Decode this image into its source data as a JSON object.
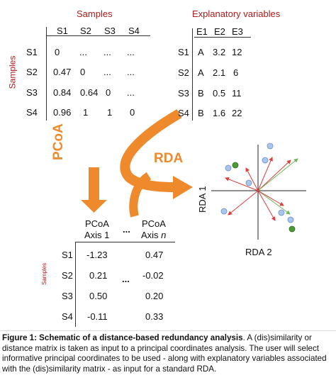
{
  "distance_matrix": {
    "title": "Samples",
    "side_label": "Samples",
    "columns": [
      "S1",
      "S2",
      "S3",
      "S4"
    ],
    "rows": [
      {
        "label": "S1",
        "cells": [
          "0",
          "...",
          "...",
          "..."
        ]
      },
      {
        "label": "S2",
        "cells": [
          "0.47",
          "0",
          "...",
          "..."
        ]
      },
      {
        "label": "S3",
        "cells": [
          "0.84",
          "0.64",
          "0",
          "..."
        ]
      },
      {
        "label": "S4",
        "cells": [
          "0.96",
          "1",
          "1",
          "0"
        ]
      }
    ]
  },
  "explanatory": {
    "title": "Explanatory variables",
    "columns": [
      "E1",
      "E2",
      "E3"
    ],
    "rows": [
      {
        "label": "S1",
        "cells": [
          "A",
          "3.2",
          "12"
        ]
      },
      {
        "label": "S2",
        "cells": [
          "A",
          "2.1",
          "6"
        ]
      },
      {
        "label": "S3",
        "cells": [
          "B",
          "0.5",
          "11"
        ]
      },
      {
        "label": "S4",
        "cells": [
          "B",
          "1.6",
          "22"
        ]
      }
    ]
  },
  "arrows": {
    "pcoa_label": "PCoA",
    "rda_label": "RDA",
    "color": "#ee8a2c"
  },
  "pcoa_table": {
    "side_label": "Samples",
    "col1_line1": "PCoA",
    "col1_line2": "Axis 1",
    "col2_line1": "PCoA",
    "col2_line2_prefix": "Axis ",
    "col2_line2_var": "n",
    "ellipsis": "...",
    "rows": [
      {
        "label": "S1",
        "v1": "-1.23",
        "v2": "0.47"
      },
      {
        "label": "S2",
        "v1": "0.21",
        "v2": "-0.02"
      },
      {
        "label": "S3",
        "v1": "0.50",
        "v2": "0.20"
      },
      {
        "label": "S4",
        "v1": "-0.11",
        "v2": "0.33"
      }
    ]
  },
  "rda_plot": {
    "ylabel": "RDA 1",
    "xlabel": "RDA 2"
  },
  "caption": {
    "bold": "Figure 1: Schematic of a distance-based redundancy analysis",
    "text": ". A (dis)similarity or distance matrix is taken as input to a principal coordinates analysis. The user will select informative principal coordinates to be used - along with explanatory variables associated with the (dis)similarity matrix - as input for a standard RDA."
  },
  "colors": {
    "accent_red": "#b11a1a",
    "arrow_orange": "#ee8a2c",
    "point_blue": "#a8c6ee",
    "point_green": "#4e9a35",
    "vector_red": "#e23b3b",
    "vector_green": "#6ab85a"
  }
}
